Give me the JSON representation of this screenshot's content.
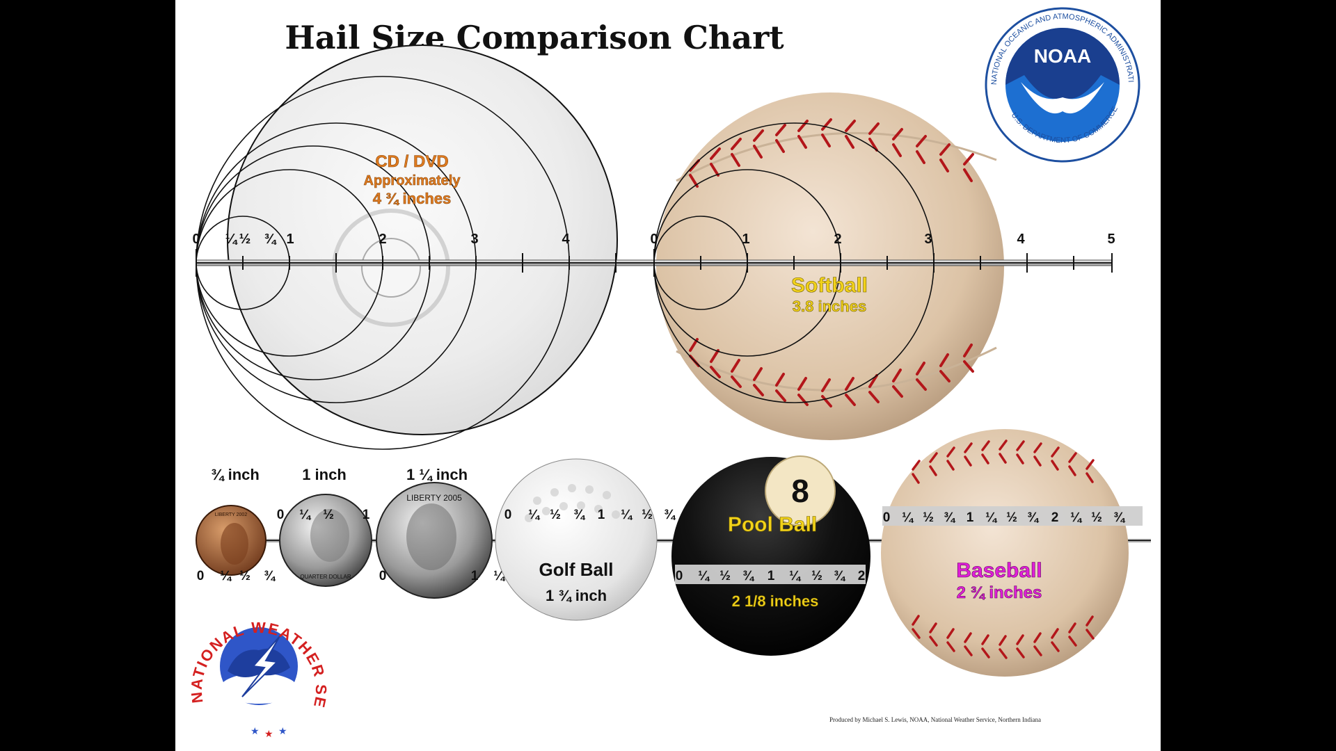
{
  "title": "Hail Size Comparison Chart",
  "credit": "Produced by Michael S. Lewis, NOAA, National Weather Service, Northern Indiana",
  "noaa_logo": {
    "ring_text": "NATIONAL OCEANIC AND ATMOSPHERIC ADMINISTRATION",
    "bottom_text": "U.S. DEPARTMENT OF COMMERCE",
    "center_text": "NOAA"
  },
  "nws_logo": {
    "ring_text": "NATIONAL WEATHER SERVICE"
  },
  "cd": {
    "name": "CD / DVD",
    "line1": "Approximately",
    "line2": "4 ¾ inches"
  },
  "softball": {
    "name": "Softball",
    "size": "3.8 inches"
  },
  "top_ruler_left_labels": [
    "0",
    "¼",
    "½",
    "¾",
    "1",
    "2",
    "3",
    "4"
  ],
  "top_ruler_right_labels": [
    "0",
    "1",
    "2",
    "3",
    "4",
    "5"
  ],
  "penny": {
    "size": "¾ inch",
    "ruler": [
      "0",
      "¼",
      "½",
      "¾"
    ],
    "coin_text": "LIBERTY 2002"
  },
  "quarter": {
    "size": "1 inch",
    "ruler": [
      "0",
      "¼",
      "½",
      "1"
    ],
    "coin_text": "QUARTER DOLLAR"
  },
  "half_dollar": {
    "size": "1 ¼ inch",
    "ruler": [
      "0",
      "1",
      "¼"
    ],
    "coin_text": "LIBERTY 2005"
  },
  "golf_ball": {
    "name": "Golf Ball",
    "size": "1 ¾ inch",
    "ruler": [
      "0",
      "¼",
      "½",
      "¾",
      "1",
      "¼",
      "½",
      "¾"
    ]
  },
  "pool_ball": {
    "name": "Pool Ball",
    "size": "2 1/8 inches",
    "number": "8",
    "ruler": [
      "0",
      "¼",
      "½",
      "¾",
      "1",
      "¼",
      "½",
      "¾",
      "2"
    ]
  },
  "baseball": {
    "name": "Baseball",
    "size": "2 ¾ inches",
    "ruler": [
      "0",
      "¼",
      "½",
      "¾",
      "1",
      "¼",
      "½",
      "¾",
      "2",
      "¼",
      "½",
      "¾"
    ]
  }
}
